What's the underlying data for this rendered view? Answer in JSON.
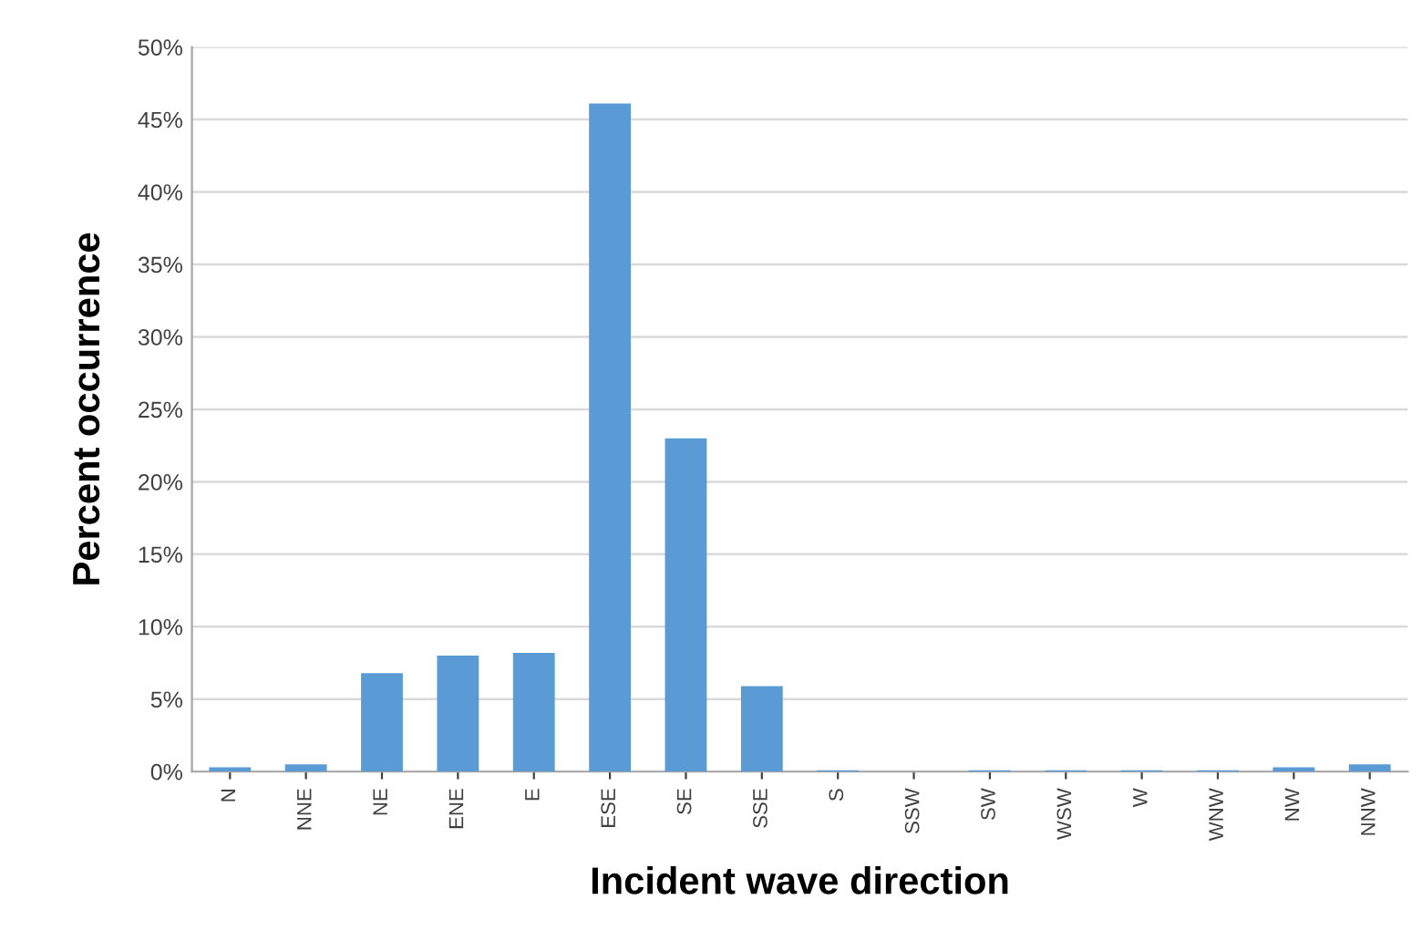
{
  "chart_data": {
    "type": "bar",
    "xlabel": "Incident wave direction",
    "ylabel": "Percent occurrence",
    "categories": [
      "N",
      "NNE",
      "NE",
      "ENE",
      "E",
      "ESE",
      "SE",
      "SSE",
      "S",
      "SSW",
      "SW",
      "WSW",
      "W",
      "WNW",
      "NW",
      "NNW"
    ],
    "values": [
      0.3,
      0.5,
      6.8,
      8.0,
      8.2,
      46.1,
      23.0,
      5.9,
      0.1,
      0,
      0.1,
      0.1,
      0.1,
      0.1,
      0.3,
      0.5
    ],
    "color": "#5b9bd5",
    "ylim": [
      0,
      50
    ],
    "yticks": [
      {
        "value": 0,
        "label": "0%"
      },
      {
        "value": 5,
        "label": "5%"
      },
      {
        "value": 10,
        "label": "10%"
      },
      {
        "value": 15,
        "label": "15%"
      },
      {
        "value": 20,
        "label": "20%"
      },
      {
        "value": 25,
        "label": "25%"
      },
      {
        "value": 30,
        "label": "30%"
      },
      {
        "value": 35,
        "label": "35%"
      },
      {
        "value": 40,
        "label": "40%"
      },
      {
        "value": 45,
        "label": "45%"
      },
      {
        "value": 50,
        "label": "50%"
      }
    ],
    "grid": "y"
  }
}
